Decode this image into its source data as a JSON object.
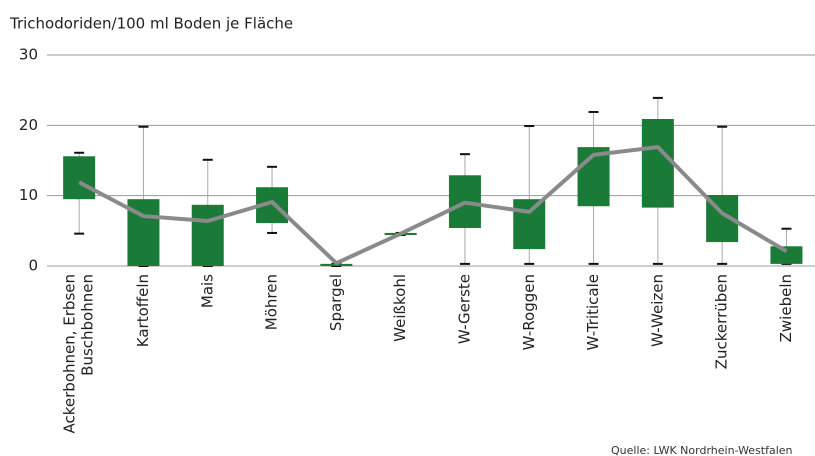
{
  "chart_data": {
    "type": "boxplot",
    "title": "Trichodoriden/100 ml Boden je Fläche",
    "source": "Quelle: LWK Nordrhein-Westfalen",
    "categories": [
      [
        "Ackerbohnen, Erbsen",
        "Buschbohnen"
      ],
      "Kartoffeln",
      "Mais",
      "Möhren",
      "Spargel",
      "Weißkohl",
      "W-Gerste",
      "W-Roggen",
      "W-Triticale",
      "W-Weizen",
      "Zuckerrüben",
      "Zwiebeln"
    ],
    "whisker_high": [
      16.1,
      19.8,
      15.1,
      14.1,
      0.3,
      4.7,
      15.9,
      19.9,
      21.9,
      23.9,
      19.8,
      5.3
    ],
    "whisker_low": [
      4.6,
      0,
      0,
      4.7,
      0,
      4.4,
      0.3,
      0.3,
      0.3,
      0.3,
      0.3,
      0.3
    ],
    "box_high": [
      15.6,
      9.5,
      8.7,
      11.2,
      0.3,
      4.7,
      12.9,
      9.5,
      16.9,
      20.9,
      10.1,
      2.8
    ],
    "box_low": [
      9.5,
      0,
      0,
      6.1,
      0,
      4.4,
      5.4,
      2.4,
      8.5,
      8.3,
      3.4,
      0.3
    ],
    "mean": [
      11.9,
      7.1,
      6.4,
      9.1,
      0.4,
      4.6,
      9.0,
      7.7,
      15.8,
      16.9,
      7.5,
      2.1
    ],
    "box_color": "#1a7a38",
    "line_color": "#8a8a8a",
    "ylim": [
      0,
      30
    ],
    "yticks": [
      0,
      10,
      20,
      30
    ],
    "grid": true
  }
}
